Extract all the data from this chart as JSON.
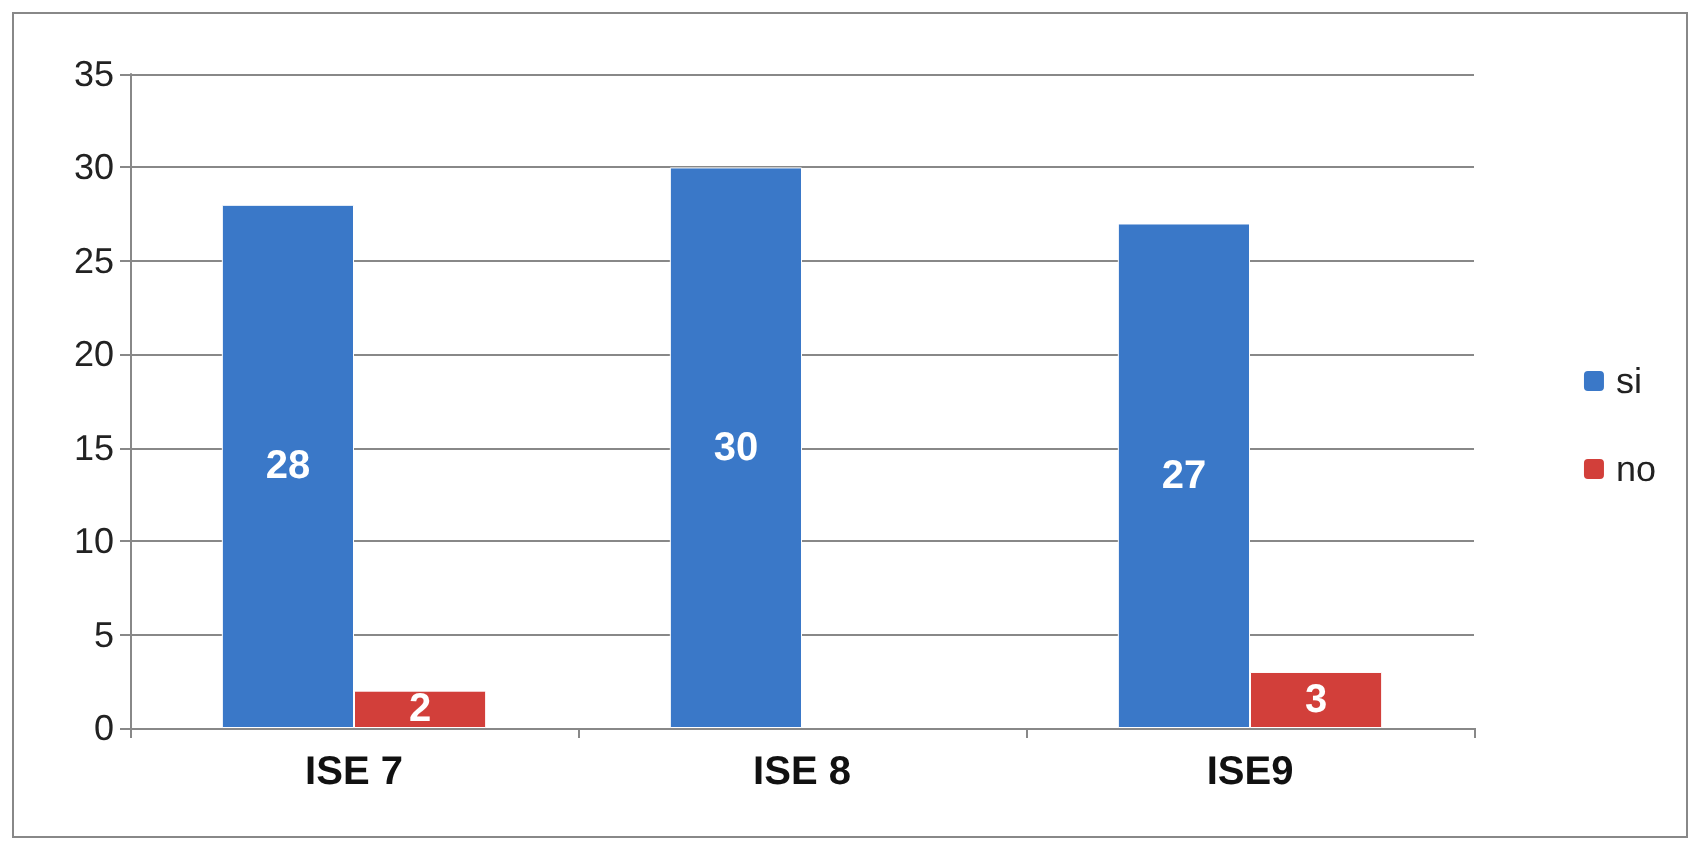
{
  "chart_data": {
    "type": "bar",
    "categories": [
      "ISE 7",
      "ISE 8",
      "ISE9"
    ],
    "series": [
      {
        "name": "si",
        "color": "#3a78c8",
        "values": [
          28,
          30,
          27
        ]
      },
      {
        "name": "no",
        "color": "#d23f3a",
        "values": [
          2,
          null,
          3
        ]
      }
    ],
    "ylim": [
      0,
      35
    ],
    "yticks": [
      0,
      5,
      10,
      15,
      20,
      25,
      30,
      35
    ],
    "grid": "y",
    "legend": "right",
    "data_labels": true
  }
}
